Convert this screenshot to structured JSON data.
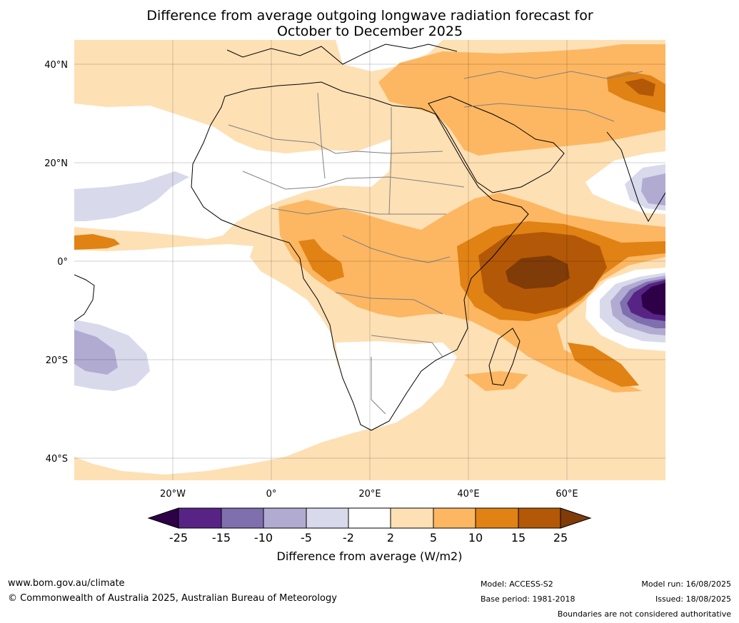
{
  "title": {
    "line1": "Difference from average outgoing longwave radiation forecast for",
    "line2": "October to December 2025"
  },
  "map": {
    "lat_ticks": [
      "40°N",
      "20°N",
      "0°",
      "20°S",
      "40°S"
    ],
    "lon_ticks": [
      "20°W",
      "0°",
      "20°E",
      "40°E",
      "60°E"
    ],
    "extent": {
      "lon": [
        -40,
        80
      ],
      "lat": [
        -45,
        45
      ]
    }
  },
  "colorbar": {
    "title": "Difference from average (W/m2)",
    "ticks": [
      "-25",
      "-15",
      "-10",
      "-5",
      "-2",
      "2",
      "5",
      "10",
      "15",
      "25"
    ],
    "colors": {
      "lt_-25": "#2d0048",
      "-25_-15": "#572485",
      "-15_-10": "#7f6fae",
      "-10_-5": "#b1abd2",
      "-5_-2": "#d8d9eb",
      "-2_2": "#ffffff",
      "2_5": "#fee0b5",
      "5_10": "#fdb762",
      "10_15": "#e08214",
      "15_25": "#b35806",
      "gt_25": "#7f3b08"
    }
  },
  "footer": {
    "website": "www.bom.gov.au/climate",
    "copyright": "© Commonwealth of Australia 2025, Australian Bureau of Meteorology",
    "model": "Model: ACCESS-S2",
    "base_period": "Base period: 1981-2018",
    "model_run": "Model run: 16/08/2025",
    "issued": "Issued: 18/08/2025",
    "disclaimer": "Boundaries are not considered authoritative"
  }
}
